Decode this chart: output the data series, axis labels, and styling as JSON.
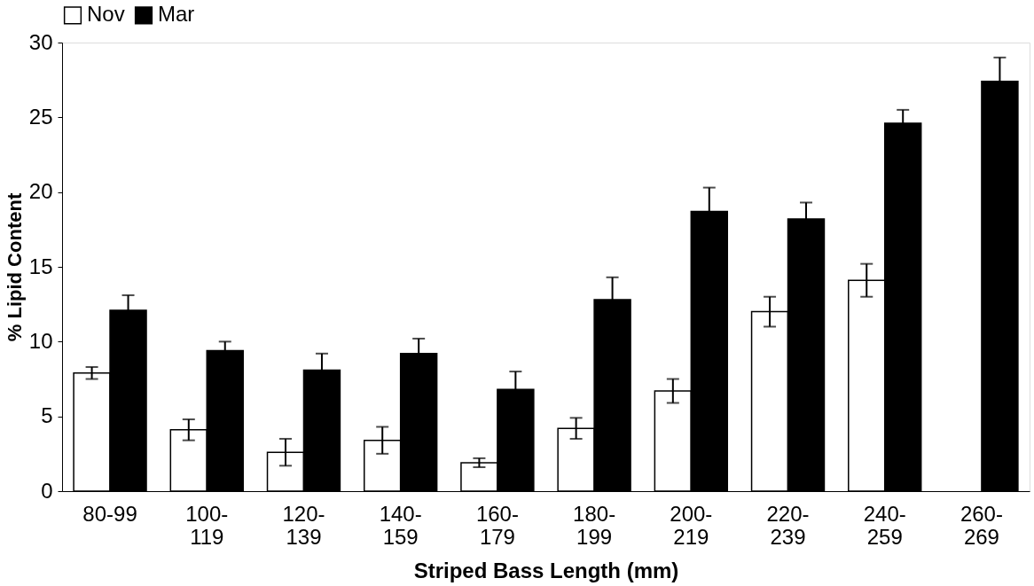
{
  "chart_data": {
    "type": "bar",
    "xlabel": "Striped Bass Length (mm)",
    "ylabel": "% Lipid Content",
    "categories": [
      "80-99",
      "100-119",
      "120-139",
      "140-159",
      "160-179",
      "180-199",
      "200-219",
      "220-239",
      "240-259",
      "260-269"
    ],
    "series": [
      {
        "name": "Nov",
        "color": "#ffffff",
        "values": [
          7.9,
          4.1,
          2.6,
          3.4,
          1.9,
          4.2,
          6.7,
          12.0,
          14.1,
          null
        ],
        "errors": [
          0.4,
          0.7,
          0.9,
          0.9,
          0.3,
          0.7,
          0.8,
          1.0,
          1.1,
          null
        ]
      },
      {
        "name": "Mar",
        "color": "#000000",
        "values": [
          12.1,
          9.4,
          8.1,
          9.2,
          6.8,
          12.8,
          18.7,
          18.2,
          24.6,
          27.4
        ],
        "errors": [
          1.0,
          0.6,
          1.1,
          1.0,
          1.2,
          1.5,
          1.6,
          1.1,
          0.9,
          1.6
        ]
      }
    ],
    "ylim": [
      0,
      30
    ],
    "yticks": [
      0,
      5,
      10,
      15,
      20,
      25,
      30
    ],
    "grid": false,
    "legend": "top"
  }
}
